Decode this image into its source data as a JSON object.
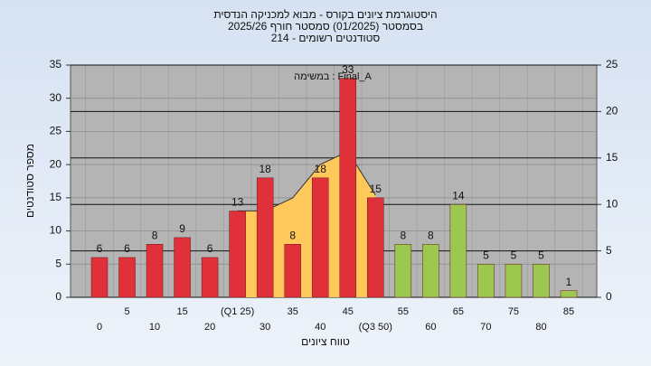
{
  "chart_data": {
    "type": "bar",
    "title_lines": [
      "היסטוגרמת ציונים בקורס - מבוא למכניקה הנדסית",
      "בסמסטר  (01/2025)  סמסטר חורף 2025/26",
      "סטודנטים רשומים - 214"
    ],
    "annotation": "במשימה : Final_A",
    "xlabel": "טווח ציונים",
    "ylabel": "מספר סטודנטים",
    "categories": [
      "0",
      "5",
      "10",
      "15",
      "20",
      "(Q1 25)",
      "30",
      "35",
      "40",
      "45",
      "(Q3 50)",
      "55",
      "60",
      "65",
      "70",
      "75",
      "80",
      "85"
    ],
    "values": [
      6,
      6,
      8,
      9,
      6,
      13,
      18,
      8,
      18,
      33,
      15,
      8,
      8,
      14,
      5,
      5,
      5,
      1
    ],
    "colors": [
      "#e0303a",
      "#e0303a",
      "#e0303a",
      "#e0303a",
      "#e0303a",
      "#e0303a",
      "#e0303a",
      "#e0303a",
      "#e0303a",
      "#e0303a",
      "#e0303a",
      "#9cc850",
      "#9cc850",
      "#9cc850",
      "#9cc850",
      "#9cc850",
      "#9cc850",
      "#9cc850"
    ],
    "area": {
      "axis": "y2",
      "color": "#ffc85a",
      "values": [
        null,
        null,
        null,
        null,
        null,
        9.3,
        9.3,
        10.7,
        14.3,
        15.7,
        11,
        null,
        null,
        null,
        null,
        null,
        null,
        null
      ]
    },
    "ylim": [
      0,
      35
    ],
    "yticks": [
      0,
      5,
      10,
      15,
      20,
      25,
      30,
      35
    ],
    "y2lim": [
      0,
      25
    ],
    "y2ticks": [
      0,
      5,
      10,
      15,
      20,
      25
    ],
    "grid": true
  }
}
